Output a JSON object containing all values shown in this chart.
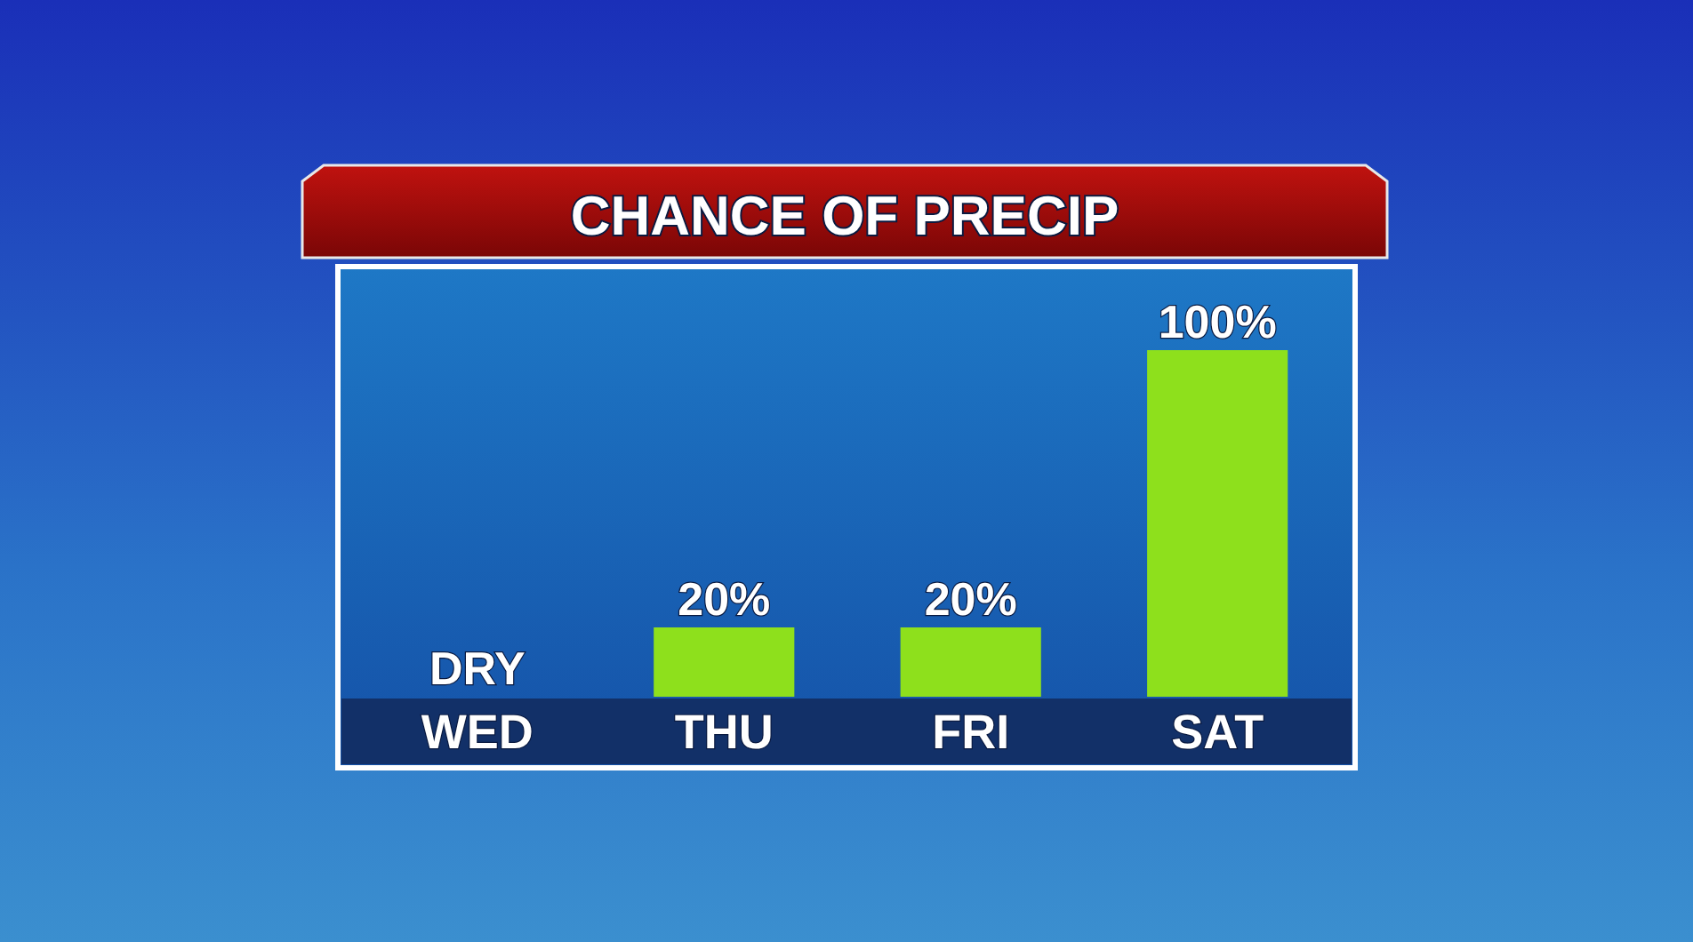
{
  "chart_data": {
    "type": "bar",
    "title": "CHANCE OF PRECIP",
    "categories": [
      "WED",
      "THU",
      "FRI",
      "SAT"
    ],
    "values": [
      0,
      20,
      20,
      100
    ],
    "value_labels": [
      "DRY",
      "20%",
      "20%",
      "100%"
    ],
    "color": "#8ee01c"
  }
}
